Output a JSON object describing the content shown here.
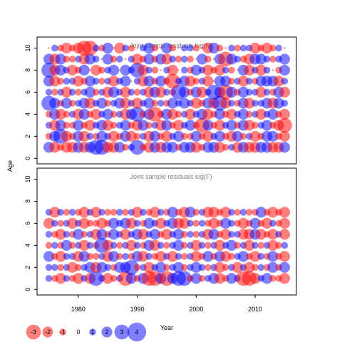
{
  "chart_data": [
    {
      "type": "scatter",
      "subtype": "bubble",
      "title": "Joint sample residuals log(N)",
      "xlabel": "Year",
      "ylabel": "Age",
      "xlim": [
        1973,
        2017
      ],
      "ylim": [
        -0.5,
        11
      ],
      "x_ticks": [
        1980,
        1990,
        2000,
        2010
      ],
      "y_ticks": [
        0,
        2,
        4,
        6,
        8,
        10
      ],
      "years": [
        1975,
        2015
      ],
      "ages": [
        1,
        10
      ],
      "colors": {
        "positive": "#ff0000",
        "negative": "#0000ff"
      },
      "grid": false,
      "residual_rows": {
        "10": [
          0,
          -1,
          1,
          2,
          1,
          2,
          3,
          3,
          -1,
          1,
          -2,
          0,
          2,
          -1,
          1,
          0,
          -1,
          -2,
          1,
          0,
          -2,
          1,
          0,
          -1,
          -1,
          1,
          0,
          2,
          -2,
          1,
          0,
          -1,
          1,
          -1,
          -1,
          2,
          1,
          2,
          1,
          -1,
          0
        ],
        "9": [
          -2,
          2,
          -2,
          1,
          1,
          -1,
          2,
          -2,
          -1,
          0,
          -2,
          1,
          -1,
          0,
          -1,
          2,
          1,
          -2,
          1,
          -2,
          2,
          -1,
          1,
          -1,
          1,
          0,
          -2,
          1,
          0,
          -2,
          3,
          -2,
          -1,
          1,
          2,
          -2,
          -2,
          -1,
          1,
          -1,
          -2
        ],
        "8": [
          -3,
          2,
          -2,
          -1,
          2,
          1,
          -2,
          0,
          2,
          1,
          -1,
          -2,
          0,
          -2,
          -1,
          -3,
          2,
          -1,
          1,
          0,
          -1,
          2,
          0,
          -1,
          1,
          -2,
          -1,
          2,
          1,
          2,
          -1,
          1,
          0,
          -2,
          2,
          -1,
          2,
          -1,
          0,
          1,
          -2
        ],
        "7": [
          -2,
          2,
          1,
          -1,
          -1,
          2,
          1,
          -2,
          -1,
          1,
          -1,
          2,
          -1,
          -2,
          0,
          -1,
          2,
          -2,
          1,
          -2,
          1,
          3,
          -1,
          -2,
          2,
          1,
          -1,
          2,
          0,
          -2,
          -2,
          1,
          -1,
          2,
          -1,
          1,
          -2,
          -2,
          -2,
          2,
          -1
        ],
        "6": [
          -1,
          1,
          -1,
          2,
          -1,
          1,
          -1,
          -2,
          1,
          -1,
          2,
          -2,
          -1,
          2,
          -1,
          1,
          -1,
          2,
          -2,
          2,
          -1,
          1,
          -3,
          -2,
          1,
          -2,
          2,
          -1,
          -3,
          -2,
          3,
          -2,
          1,
          -2,
          -1,
          -1,
          2,
          -1,
          1,
          -2,
          2
        ],
        "5": [
          -3,
          -2,
          1,
          -2,
          1,
          -1,
          -2,
          2,
          -1,
          -2,
          1,
          -1,
          -2,
          2,
          -1,
          2,
          -1,
          -2,
          1,
          -1,
          1,
          -2,
          -1,
          -2,
          -1,
          2,
          1,
          -2,
          2,
          -3,
          2,
          -1,
          1,
          -2,
          2,
          -1,
          -1,
          -2,
          2,
          -2,
          -1
        ],
        "4": [
          1,
          -2,
          2,
          1,
          -1,
          2,
          -2,
          1,
          2,
          -1,
          -2,
          1,
          -1,
          2,
          -2,
          -3,
          1,
          -2,
          3,
          1,
          -2,
          2,
          1,
          -1,
          2,
          -1,
          -2,
          2,
          1,
          -2,
          1,
          2,
          -1,
          -2,
          1,
          -1,
          2,
          -1,
          -2,
          1,
          2
        ],
        "3": [
          -1,
          2,
          -2,
          1,
          1,
          -2,
          1,
          2,
          -1,
          -2,
          2,
          1,
          -1,
          -2,
          1,
          2,
          -2,
          1,
          -1,
          2,
          -2,
          1,
          2,
          -1,
          -2,
          1,
          3,
          -2,
          1,
          2,
          -1,
          -2,
          1,
          -2,
          2,
          1,
          -1,
          -2,
          1,
          2,
          3
        ],
        "2": [
          1,
          -2,
          -3,
          2,
          1,
          -2,
          2,
          -1,
          1,
          -2,
          -1,
          2,
          1,
          -2,
          2,
          1,
          -1,
          2,
          -2,
          1,
          2,
          -1,
          -2,
          1,
          1,
          -2,
          1,
          2,
          -1,
          -2,
          1,
          2,
          -2,
          1,
          -1,
          2,
          1,
          -2,
          -2,
          1,
          2
        ],
        "1": [
          -2,
          2,
          1,
          2,
          2,
          -2,
          2,
          -2,
          -3,
          -3,
          2,
          2,
          -2,
          1,
          -1,
          -3,
          1,
          2,
          -2,
          2,
          -2,
          -2,
          1,
          -2,
          -2,
          2,
          1,
          -2,
          -2,
          2,
          1,
          -1,
          2,
          -2,
          2,
          2,
          -2,
          -2,
          2,
          2,
          -2
        ]
      }
    },
    {
      "type": "scatter",
      "subtype": "bubble",
      "title": "Joint sample residuals log(F)",
      "xlabel": "Year",
      "ylabel": "Age",
      "xlim": [
        1973,
        2017
      ],
      "ylim": [
        -0.5,
        11
      ],
      "x_ticks": [
        1980,
        1990,
        2000,
        2010
      ],
      "y_ticks": [
        0,
        2,
        4,
        6,
        8,
        10
      ],
      "years": [
        1975,
        2015
      ],
      "ages": [
        1,
        7
      ],
      "colors": {
        "positive": "#ff0000",
        "negative": "#0000ff"
      },
      "grid": false,
      "residual_rows": {
        "7": [
          -1,
          2,
          -1,
          1,
          -1,
          1,
          2,
          -1,
          2,
          -1,
          1,
          1,
          -1,
          1,
          -1,
          2,
          -1,
          1,
          2,
          -1,
          1,
          -2,
          1,
          2,
          -2,
          1,
          -1,
          2,
          2,
          1,
          2,
          -1,
          1,
          -1,
          1,
          1,
          -2,
          1,
          2,
          1,
          2
        ],
        "6": [
          2,
          -1,
          1,
          -1,
          2,
          -1,
          2,
          1,
          1,
          2,
          1,
          -2,
          -1,
          -2,
          2,
          -1,
          1,
          -2,
          -1,
          2,
          -1,
          -2,
          2,
          2,
          -1,
          1,
          -1,
          1,
          2,
          1,
          -2,
          -1,
          1,
          2,
          1,
          -2,
          1,
          2,
          -1,
          1,
          2
        ],
        "5": [
          -1,
          1,
          2,
          -1,
          1,
          -2,
          1,
          -1,
          2,
          -2,
          1,
          -2,
          -1,
          2,
          -1,
          -2,
          2,
          -1,
          -2,
          1,
          2,
          -1,
          -2,
          1,
          -1,
          1,
          -1,
          2,
          -2,
          1,
          2,
          -1,
          -1,
          2,
          2,
          -2,
          2,
          1,
          2,
          -1,
          2
        ],
        "4": [
          1,
          -1,
          1,
          -2,
          1,
          -1,
          2,
          -1,
          1,
          -3,
          2,
          -1,
          1,
          -1,
          2,
          -1,
          1,
          -2,
          2,
          -1,
          1,
          -1,
          -2,
          1,
          -1,
          2,
          -1,
          1,
          -1,
          2,
          -1,
          -2,
          1,
          -1,
          2,
          -1,
          1,
          -1,
          2,
          1,
          -1
        ],
        "3": [
          -2,
          1,
          2,
          -1,
          -1,
          2,
          -2,
          1,
          1,
          -1,
          2,
          -2,
          1,
          -1,
          1,
          -2,
          2,
          -1,
          1,
          2,
          -1,
          2,
          -1,
          1,
          -1,
          2,
          1,
          -2,
          1,
          -2,
          2,
          1,
          -1,
          -2,
          1,
          2,
          -1,
          1,
          -2,
          1,
          2
        ],
        "2": [
          -1,
          -1,
          1,
          -1,
          2,
          1,
          -1,
          -2,
          2,
          -2,
          -1,
          1,
          -2,
          -2,
          -3,
          1,
          -1,
          2,
          -1,
          -2,
          1,
          -1,
          -2,
          1,
          -1,
          -2,
          -1,
          1,
          -1,
          2,
          1,
          -1,
          2,
          -1,
          2,
          1,
          -1,
          1,
          -2,
          1,
          -2
        ],
        "1": [
          -1,
          1,
          2,
          -1,
          1,
          2,
          -1,
          2,
          -3,
          -1,
          2,
          1,
          -1,
          3,
          -2,
          1,
          -2,
          3,
          3,
          -2,
          3,
          -2,
          -3,
          -3,
          1,
          -2,
          1,
          -1,
          -2,
          2,
          1,
          -2,
          -1,
          3,
          3,
          2,
          -1,
          -2,
          1,
          1,
          2
        ]
      }
    }
  ],
  "legend": {
    "placement": "bottom-left",
    "entries": [
      "-3",
      "-2",
      "-1",
      "0",
      "1",
      "2",
      "3",
      "4"
    ],
    "values": [
      -3,
      -2,
      -1,
      0,
      1,
      2,
      3,
      4
    ]
  }
}
